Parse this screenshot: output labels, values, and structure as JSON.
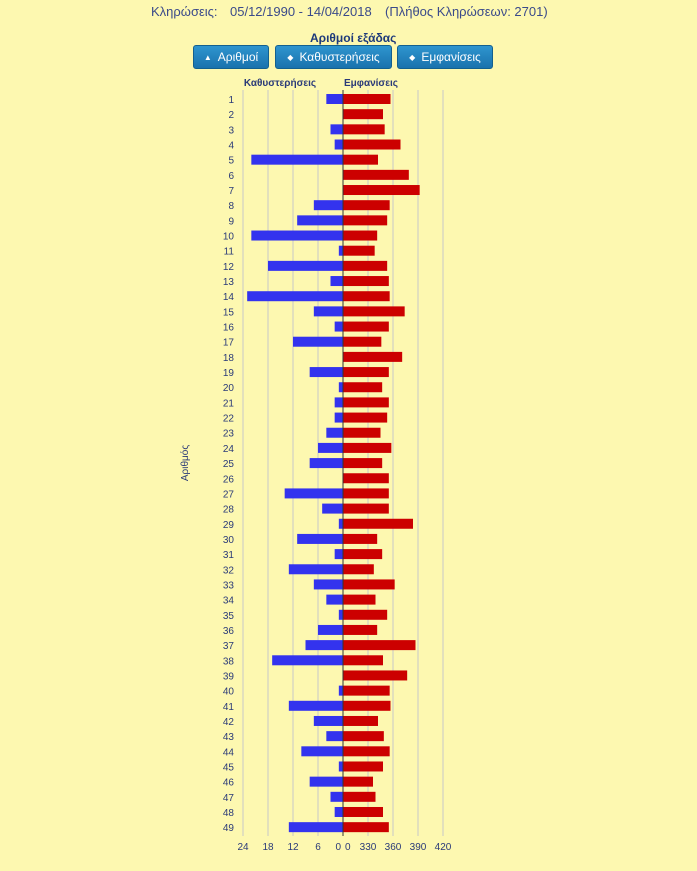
{
  "header": {
    "label": "Κληρώσεις:",
    "range": "05/12/1990 - 14/04/2018",
    "count": "(Πλήθος Κληρώσεων: 2701)"
  },
  "sort": {
    "title": "Αριθμοί εξάδας",
    "buttons": [
      {
        "label": "Αριθμοί",
        "icon": "triangle-up-icon"
      },
      {
        "label": "Καθυστερήσεις",
        "icon": "sort-icon"
      },
      {
        "label": "Εμφανίσεις",
        "icon": "sort-icon"
      }
    ]
  },
  "colors": {
    "background": "#fdf8b0",
    "delays": "#3333ee",
    "appearances": "#cc0000",
    "button": "#1f7fbf"
  },
  "chart_data": {
    "type": "bar",
    "orientation": "horizontal",
    "left_header": "Καθυστερήσεις",
    "right_header": "Εμφανίσεις",
    "ylabel": "Αριθμός",
    "categories": [
      "1",
      "2",
      "3",
      "4",
      "5",
      "6",
      "7",
      "8",
      "9",
      "10",
      "11",
      "12",
      "13",
      "14",
      "15",
      "16",
      "17",
      "18",
      "19",
      "20",
      "21",
      "22",
      "23",
      "24",
      "25",
      "26",
      "27",
      "28",
      "29",
      "30",
      "31",
      "32",
      "33",
      "34",
      "35",
      "36",
      "37",
      "38",
      "39",
      "40",
      "41",
      "42",
      "43",
      "44",
      "45",
      "46",
      "47",
      "48",
      "49"
    ],
    "left_ticks": [
      "24",
      "18",
      "12",
      "6",
      "0"
    ],
    "right_ticks": [
      "0",
      "330",
      "360",
      "390",
      "420"
    ],
    "series": [
      {
        "name": "Καθυστερήσεις",
        "xlim": [
          0,
          24
        ],
        "values": [
          4,
          0,
          3,
          2,
          22,
          0,
          0,
          7,
          11,
          22,
          1,
          18,
          3,
          23,
          7,
          2,
          12,
          0,
          8,
          1,
          2,
          2,
          4,
          6,
          8,
          0,
          14,
          5,
          1,
          11,
          2,
          13,
          7,
          4,
          1,
          6,
          9,
          17,
          0,
          1,
          13,
          7,
          4,
          10,
          1,
          8,
          3,
          2,
          13
        ]
      },
      {
        "name": "Εμφανίσεις",
        "xlim": [
          300,
          420
        ],
        "values": [
          357,
          348,
          350,
          369,
          342,
          379,
          392,
          356,
          353,
          341,
          338,
          353,
          355,
          356,
          374,
          355,
          346,
          371,
          355,
          347,
          355,
          353,
          345,
          358,
          347,
          355,
          355,
          355,
          384,
          341,
          347,
          337,
          362,
          339,
          353,
          341,
          387,
          348,
          377,
          356,
          357,
          342,
          349,
          356,
          348,
          336,
          339,
          348,
          355
        ]
      }
    ]
  }
}
